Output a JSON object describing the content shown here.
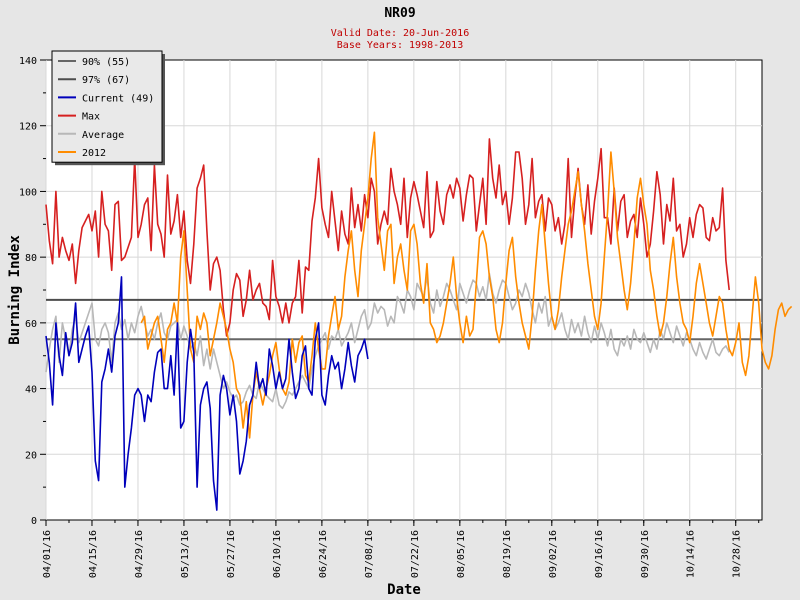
{
  "header": {
    "title": "NR09",
    "valid_date": "Valid Date: 20-Jun-2016",
    "base_years": "Base Years: 1998-2013"
  },
  "chart_data": {
    "type": "line",
    "xlabel": "Date",
    "ylabel": "Burning Index",
    "ylim": [
      0,
      140
    ],
    "yticks": [
      0,
      20,
      40,
      60,
      80,
      100,
      120,
      140
    ],
    "x_start": "04/01/16",
    "x_end": "11/05/16",
    "xticks": [
      "04/01/16",
      "04/15/16",
      "04/29/16",
      "05/13/16",
      "05/27/16",
      "06/10/16",
      "06/24/16",
      "07/08/16",
      "07/22/16",
      "08/05/16",
      "08/19/16",
      "09/02/16",
      "09/16/16",
      "09/30/16",
      "10/14/16",
      "10/28/16"
    ],
    "grid": true,
    "legend_position": "top-left",
    "thresholds": [
      {
        "name": "90% (55)",
        "value": 55,
        "color": "#666666"
      },
      {
        "name": "97% (67)",
        "value": 67,
        "color": "#4d4d4d"
      }
    ],
    "series": [
      {
        "name": "Current (49)",
        "color": "#0000bb",
        "values": [
          56,
          48,
          35,
          60,
          50,
          44,
          57,
          50,
          54,
          66,
          48,
          52,
          56,
          59,
          45,
          18,
          12,
          42,
          46,
          52,
          45,
          56,
          60,
          74,
          10,
          20,
          28,
          38,
          40,
          38,
          30,
          38,
          36,
          45,
          51,
          52,
          40,
          40,
          50,
          38,
          60,
          28,
          30,
          48,
          58,
          51,
          10,
          35,
          40,
          42,
          34,
          12,
          3,
          38,
          44,
          40,
          32,
          38,
          30,
          14,
          18,
          24,
          35,
          38,
          48,
          40,
          43,
          38,
          52,
          47,
          40,
          45,
          40,
          43,
          55,
          45,
          37,
          40,
          50,
          53,
          40,
          38,
          55,
          60,
          38,
          35,
          44,
          50,
          46,
          48,
          40,
          46,
          54,
          47,
          42,
          50,
          52,
          55,
          49
        ]
      },
      {
        "name": "Max",
        "color": "#d62020",
        "values": [
          96,
          85,
          78,
          100,
          80,
          86,
          82,
          79,
          84,
          72,
          82,
          89,
          91,
          93,
          88,
          94,
          80,
          100,
          90,
          88,
          76,
          96,
          97,
          79,
          80,
          83,
          86,
          110,
          86,
          90,
          96,
          98,
          82,
          108,
          90,
          87,
          80,
          105,
          87,
          91,
          99,
          86,
          94,
          79,
          72,
          84,
          101,
          104,
          108,
          88,
          70,
          78,
          80,
          76,
          64,
          56,
          60,
          70,
          75,
          73,
          62,
          67,
          76,
          67,
          70,
          72,
          66,
          65,
          61,
          79,
          68,
          65,
          60,
          66,
          60,
          66,
          68,
          79,
          63,
          77,
          76,
          91,
          98,
          110,
          95,
          90,
          86,
          100,
          91,
          82,
          94,
          87,
          84,
          101,
          89,
          96,
          88,
          99,
          92,
          104,
          100,
          84,
          90,
          94,
          90,
          107,
          100,
          96,
          90,
          104,
          86,
          98,
          103,
          99,
          94,
          89,
          106,
          86,
          88,
          103,
          94,
          90,
          99,
          102,
          98,
          104,
          101,
          91,
          99,
          105,
          104,
          88,
          96,
          104,
          90,
          116,
          104,
          98,
          108,
          96,
          100,
          90,
          98,
          112,
          112,
          104,
          90,
          96,
          110,
          92,
          97,
          99,
          88,
          98,
          96,
          88,
          92,
          84,
          90,
          110,
          86,
          98,
          107,
          96,
          90,
          102,
          87,
          97,
          104,
          113,
          92,
          92,
          84,
          101,
          88,
          97,
          99,
          86,
          91,
          93,
          86,
          98,
          90,
          80,
          84,
          94,
          106,
          99,
          84,
          96,
          91,
          104,
          88,
          90,
          80,
          84,
          92,
          86,
          93,
          96,
          95,
          86,
          85,
          92,
          88,
          89,
          101,
          79,
          70
        ]
      },
      {
        "name": "Average",
        "color": "#b8b8b8",
        "values": [
          45,
          52,
          58,
          62,
          48,
          60,
          55,
          50,
          58,
          62,
          54,
          57,
          60,
          63,
          66,
          55,
          53,
          58,
          60,
          57,
          48,
          60,
          63,
          58,
          61,
          55,
          60,
          57,
          62,
          65,
          60,
          56,
          58,
          55,
          60,
          63,
          57,
          55,
          59,
          60,
          61,
          55,
          59,
          56,
          52,
          54,
          50,
          56,
          47,
          52,
          46,
          52,
          48,
          44,
          40,
          42,
          39,
          37,
          38,
          35,
          36,
          39,
          41,
          38,
          37,
          42,
          40,
          38,
          37,
          36,
          40,
          35,
          34,
          36,
          39,
          38,
          40,
          42,
          44,
          42,
          40,
          46,
          50,
          53,
          55,
          57,
          52,
          56,
          55,
          58,
          53,
          55,
          57,
          60,
          54,
          58,
          62,
          64,
          58,
          60,
          66,
          63,
          65,
          64,
          59,
          62,
          60,
          68,
          66,
          63,
          70,
          68,
          64,
          72,
          70,
          68,
          74,
          66,
          63,
          70,
          65,
          68,
          72,
          70,
          67,
          64,
          72,
          69,
          66,
          70,
          73,
          72,
          68,
          71,
          67,
          75,
          69,
          66,
          70,
          73,
          72,
          68,
          64,
          66,
          70,
          68,
          72,
          69,
          64,
          60,
          66,
          63,
          68,
          59,
          62,
          58,
          60,
          63,
          58,
          55,
          61,
          57,
          60,
          56,
          62,
          57,
          54,
          59,
          55,
          60,
          57,
          53,
          58,
          52,
          50,
          55,
          53,
          56,
          52,
          58,
          55,
          54,
          57,
          54,
          51,
          55,
          52,
          58,
          55,
          60,
          57,
          54,
          59,
          56,
          53,
          57,
          55,
          52,
          50,
          54,
          51,
          49,
          52,
          55,
          51,
          50,
          52,
          53,
          51
        ]
      },
      {
        "name": "2012",
        "color": "#ff8c00",
        "start_index": 29,
        "values": [
          60,
          62,
          52,
          56,
          60,
          62,
          55,
          48,
          58,
          60,
          66,
          60,
          80,
          88,
          70,
          52,
          48,
          62,
          58,
          63,
          60,
          50,
          55,
          60,
          66,
          62,
          58,
          52,
          48,
          40,
          38,
          28,
          36,
          25,
          38,
          45,
          40,
          35,
          40,
          44,
          50,
          54,
          46,
          40,
          38,
          42,
          55,
          48,
          54,
          56,
          44,
          42,
          50,
          60,
          52,
          46,
          46,
          56,
          62,
          68,
          58,
          62,
          74,
          82,
          88,
          76,
          68,
          82,
          90,
          98,
          110,
          118,
          92,
          84,
          76,
          88,
          90,
          72,
          80,
          84,
          76,
          70,
          88,
          90,
          84,
          72,
          66,
          78,
          60,
          58,
          54,
          56,
          60,
          66,
          72,
          80,
          68,
          60,
          54,
          62,
          56,
          58,
          72,
          86,
          88,
          84,
          74,
          68,
          58,
          54,
          60,
          72,
          82,
          86,
          74,
          66,
          60,
          56,
          52,
          62,
          76,
          88,
          96,
          84,
          72,
          62,
          58,
          64,
          74,
          82,
          90,
          94,
          100,
          106,
          96,
          88,
          78,
          70,
          62,
          58,
          66,
          80,
          94,
          112,
          100,
          86,
          78,
          70,
          64,
          72,
          84,
          98,
          104,
          96,
          90,
          76,
          70,
          62,
          56,
          60,
          68,
          78,
          86,
          74,
          66,
          60,
          58,
          54,
          62,
          72,
          78,
          72,
          66,
          60,
          56,
          62,
          68,
          66,
          58,
          52,
          50,
          54,
          60,
          48,
          44,
          50,
          62,
          74,
          66,
          52,
          48,
          46,
          50,
          58,
          64,
          66,
          62,
          64,
          65
        ]
      }
    ]
  }
}
